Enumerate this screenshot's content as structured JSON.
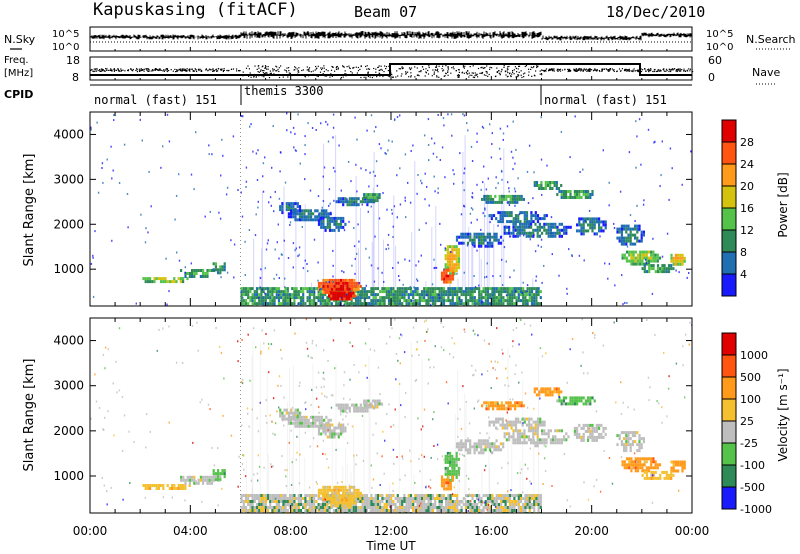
{
  "chart_data": {
    "type": "heatmap",
    "header": {
      "station": "Kapuskasing (fitACF)",
      "beam": "Beam 07",
      "date": "18/Dec/2010"
    },
    "noise_panel": {
      "left_label": "N.Sky",
      "right_label": "N.Search",
      "left_ticks": [
        "10^5",
        "10^0"
      ],
      "right_ticks": [
        "10^5",
        "10^0"
      ]
    },
    "freq_panel": {
      "left_label_1": "Freq.",
      "left_label_2": "[MHz]",
      "right_label": "Nave",
      "left_ticks": [
        "18",
        "8"
      ],
      "right_ticks": [
        "60",
        "0"
      ]
    },
    "cpid": {
      "label": "CPID",
      "segments": [
        {
          "name": "normal (fast) 151",
          "start_hour": 0,
          "end_hour": 6
        },
        {
          "name": "themis 3300",
          "start_hour": 6,
          "end_hour": 18
        },
        {
          "name": "normal (fast) 151",
          "start_hour": 18,
          "end_hour": 24
        }
      ]
    },
    "x_axis": {
      "label": "Time UT",
      "range_hours": [
        0,
        24
      ],
      "ticks": [
        "00:00",
        "04:00",
        "08:00",
        "12:00",
        "16:00",
        "20:00",
        "00:00"
      ]
    },
    "y_axis": {
      "label": "Slant Range [km]",
      "range": [
        180,
        4500
      ],
      "ticks": [
        1000,
        2000,
        3000,
        4000
      ]
    },
    "power_panel": {
      "colorbar_label": "Power [dB]",
      "ticks": [
        "4",
        "8",
        "12",
        "16",
        "20",
        "24",
        "28"
      ],
      "colors": [
        "#1a1aff",
        "#1f6fb2",
        "#2e8b57",
        "#55c34a",
        "#d4c20f",
        "#ff9a1a",
        "#ff5511",
        "#e00000"
      ]
    },
    "velocity_panel": {
      "colorbar_label": "Velocity [m s⁻¹]",
      "ticks": [
        "1000",
        "500",
        "100",
        "25",
        "-25",
        "-100",
        "-500",
        "-1000"
      ],
      "colors": [
        "#1a1aff",
        "#2e8b57",
        "#55c34a",
        "#bebebe",
        "#f5c030",
        "#ff9a1a",
        "#ff5511",
        "#e00000"
      ]
    }
  }
}
